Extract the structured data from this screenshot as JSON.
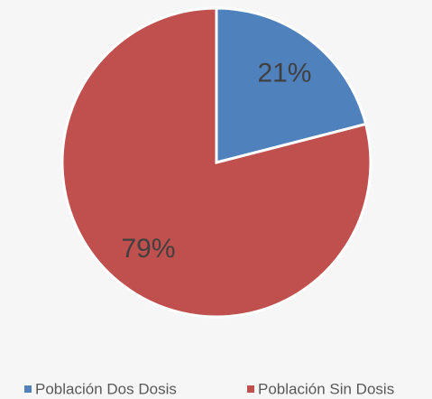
{
  "chart_data": {
    "type": "pie",
    "categories": [
      "Población Dos Dosis",
      "Población Sin Dosis"
    ],
    "values": [
      21,
      79
    ],
    "value_labels": [
      "21%",
      "79%"
    ],
    "colors": [
      "#4f81bd",
      "#c0504d"
    ],
    "legend": "bottom"
  }
}
